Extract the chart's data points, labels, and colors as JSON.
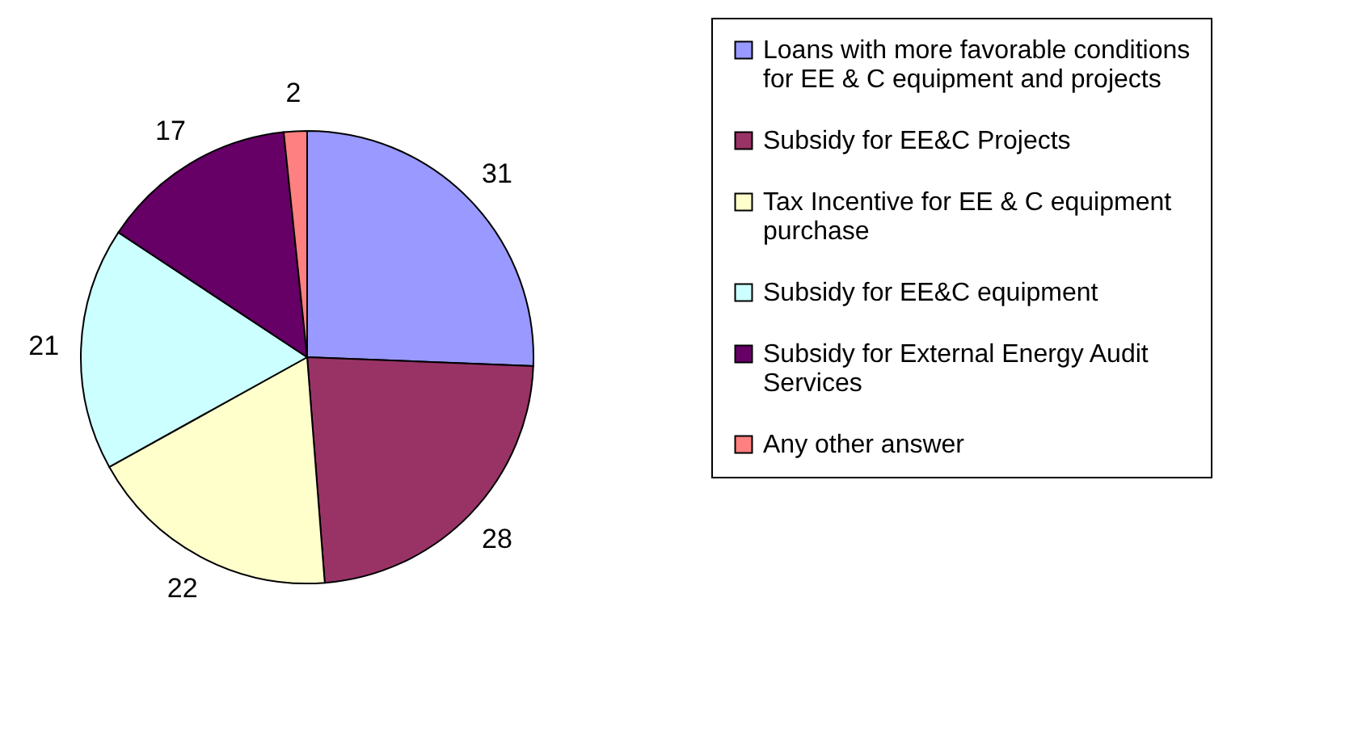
{
  "chart_data": {
    "type": "pie",
    "categories": [
      "Loans with more favorable conditions for EE & C equipment and projects",
      "Subsidy for EE&C Projects",
      "Tax Incentive for EE & C equipment purchase",
      "Subsidy for EE&C equipment",
      "Subsidy for External Energy Audit Services",
      "Any other answer"
    ],
    "values": [
      31,
      28,
      22,
      21,
      17,
      2
    ],
    "colors": [
      "#9999ff",
      "#993366",
      "#ffffcc",
      "#ccffff",
      "#660066",
      "#ff8080"
    ],
    "data_labels": true,
    "legend": "right"
  }
}
